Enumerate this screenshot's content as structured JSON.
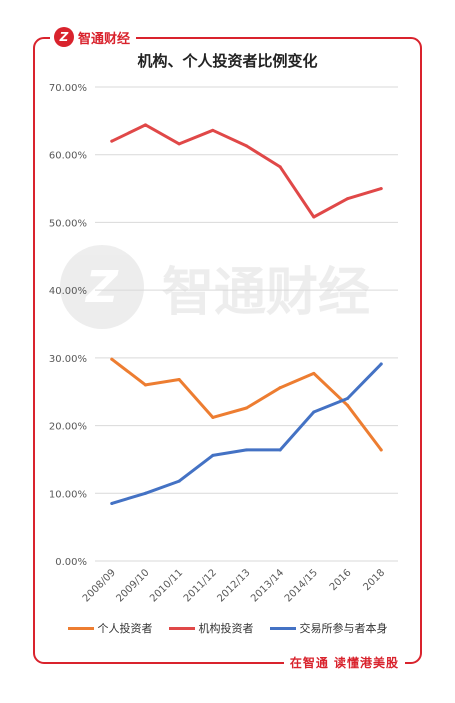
{
  "header": {
    "brand_name": "智通财经",
    "logo_glyph": "Z"
  },
  "footer": {
    "slogan": "在智通 读懂港美股"
  },
  "watermark": {
    "text": "智通财经",
    "logo_glyph": "Z"
  },
  "colors": {
    "frame": "#d9232d",
    "个人投资者": "#ed7d31",
    "机构投资者": "#e04848",
    "交易所参与者本身": "#4472c4",
    "grid": "#d9d9d9"
  },
  "chart_data": {
    "type": "line",
    "title": "机构、个人投资者比例变化",
    "categories": [
      "2008/09",
      "2009/10",
      "2010/11",
      "2011/12",
      "2012/13",
      "2013/14",
      "2014/15",
      "2016",
      "2018"
    ],
    "y_ticks": [
      "0.00%",
      "10.00%",
      "20.00%",
      "30.00%",
      "40.00%",
      "50.00%",
      "60.00%",
      "70.00%"
    ],
    "ylim": [
      0,
      70
    ],
    "grid": true,
    "legend_position": "bottom",
    "series": [
      {
        "name": "个人投资者",
        "values": [
          29.8,
          26.0,
          26.8,
          21.2,
          22.6,
          25.6,
          27.7,
          23.0,
          16.4
        ]
      },
      {
        "name": "机构投资者",
        "values": [
          62.0,
          64.4,
          61.6,
          63.6,
          61.3,
          58.2,
          50.8,
          53.5,
          55.0
        ]
      },
      {
        "name": "交易所参与者本身",
        "values": [
          8.5,
          10.0,
          11.8,
          15.6,
          16.4,
          16.4,
          22.0,
          24.0,
          29.1
        ]
      }
    ]
  }
}
